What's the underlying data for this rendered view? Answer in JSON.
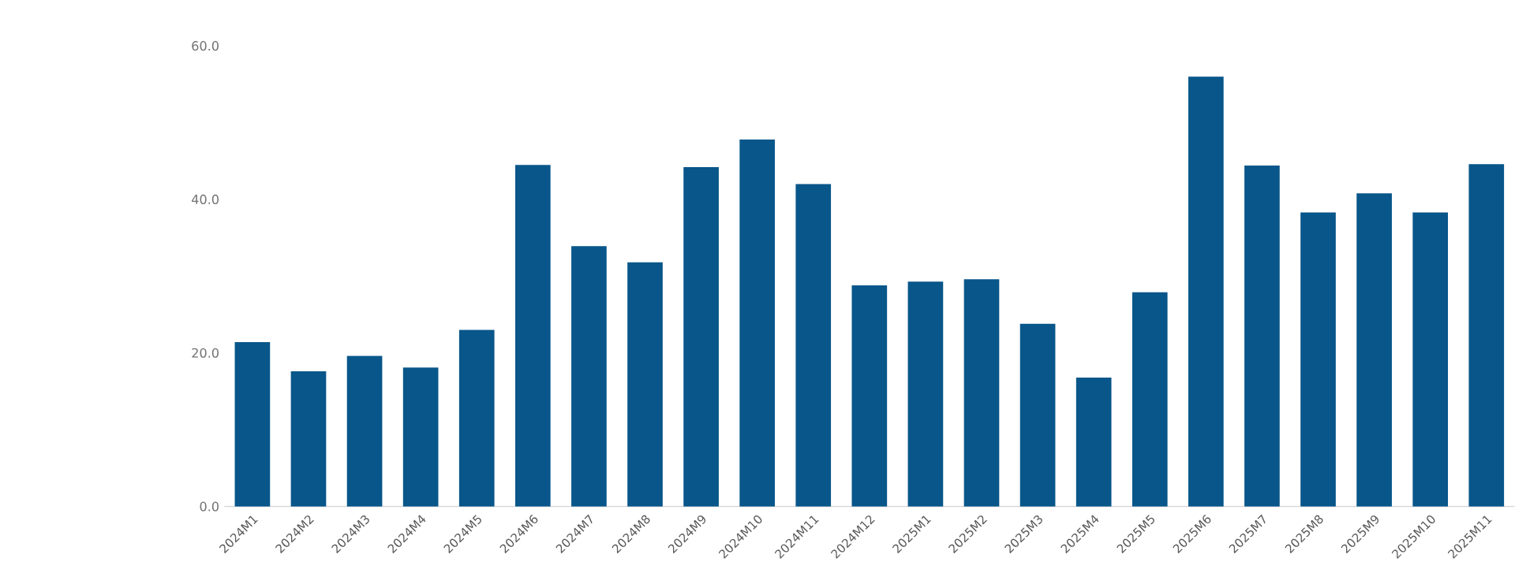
{
  "chart_data": {
    "type": "bar",
    "categories": [
      "2024M1",
      "2024M2",
      "2024M3",
      "2024M4",
      "2024M5",
      "2024M6",
      "2024M7",
      "2024M8",
      "2024M9",
      "2024M10",
      "2024M11",
      "2024M12",
      "2025M1",
      "2025M2",
      "2025M3",
      "2025M4",
      "2025M5",
      "2025M6",
      "2025M7",
      "2025M8",
      "2025M9",
      "2025M10",
      "2025M11"
    ],
    "values": [
      21.4,
      17.6,
      19.6,
      18.1,
      23.0,
      44.5,
      33.9,
      31.8,
      44.2,
      47.8,
      42.0,
      28.8,
      29.3,
      29.6,
      23.8,
      16.8,
      27.9,
      56.0,
      44.4,
      38.3,
      40.8,
      38.3,
      44.6
    ],
    "color": "#08568a",
    "ylim": [
      0,
      60
    ],
    "yticks": [
      {
        "value": 0,
        "label": "0.0"
      },
      {
        "value": 20,
        "label": "20.0"
      },
      {
        "value": 40,
        "label": "40.0"
      },
      {
        "value": 60,
        "label": "60.0"
      }
    ]
  }
}
